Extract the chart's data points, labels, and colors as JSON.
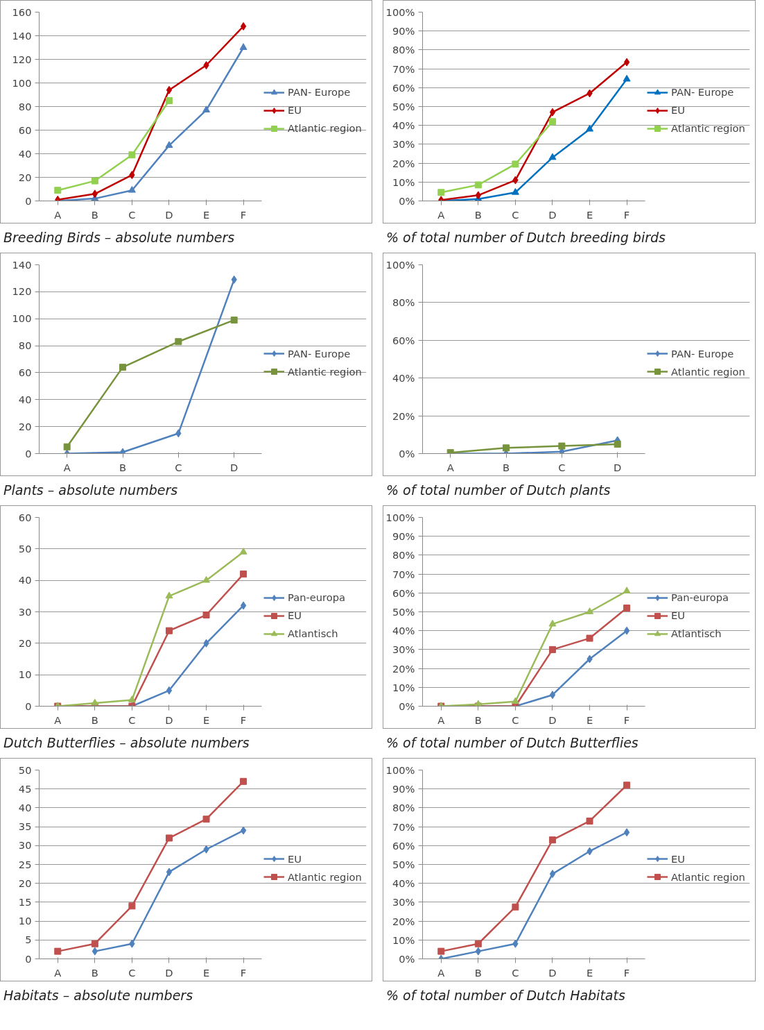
{
  "chart_data": [
    {
      "type": "line",
      "title": "Breeding Birds – absolute numbers",
      "categories": [
        "A",
        "B",
        "C",
        "D",
        "E",
        "F"
      ],
      "ylim": [
        0,
        160
      ],
      "yticks": [
        0,
        20,
        40,
        60,
        80,
        100,
        120,
        140,
        160
      ],
      "grid": "y",
      "legend": "right",
      "series": [
        {
          "name": "PAN- Europe",
          "color": "#4f81bd",
          "marker": "triangle",
          "values": [
            0,
            2,
            9,
            47,
            77,
            130
          ]
        },
        {
          "name": "EU",
          "color": "#c00000",
          "marker": "diamond",
          "values": [
            1,
            6,
            22,
            94,
            115,
            148
          ]
        },
        {
          "name": "Atlantic region",
          "color": "#92d050",
          "marker": "square",
          "values": [
            9,
            17,
            39,
            85,
            null,
            null
          ]
        }
      ]
    },
    {
      "type": "line",
      "title": "% of total number of Dutch breeding birds",
      "categories": [
        "A",
        "B",
        "C",
        "D",
        "E",
        "F"
      ],
      "ylim": [
        0,
        100
      ],
      "yticks": [
        {
          "value": 0,
          "label": "0%"
        },
        {
          "value": 10,
          "label": "10%"
        },
        {
          "value": 20,
          "label": "20%"
        },
        {
          "value": 30,
          "label": "30%"
        },
        {
          "value": 40,
          "label": "40%"
        },
        {
          "value": 50,
          "label": "50%"
        },
        {
          "value": 60,
          "label": "60%"
        },
        {
          "value": 70,
          "label": "70%"
        },
        {
          "value": 80,
          "label": "80%"
        },
        {
          "value": 90,
          "label": "90%"
        },
        {
          "value": 100,
          "label": "100%"
        }
      ],
      "grid": "y",
      "legend": "right",
      "series": [
        {
          "name": "PAN- Europe",
          "color": "#0070c0",
          "marker": "triangle",
          "values": [
            0,
            1,
            4.5,
            23,
            38,
            64.5
          ]
        },
        {
          "name": "EU",
          "color": "#c00000",
          "marker": "diamond",
          "values": [
            0.5,
            3,
            11,
            47,
            57,
            73.5
          ]
        },
        {
          "name": "Atlantic region",
          "color": "#92d050",
          "marker": "square",
          "values": [
            4.5,
            8.5,
            19.5,
            42,
            null,
            null
          ]
        }
      ]
    },
    {
      "type": "line",
      "title": "Plants – absolute numbers",
      "categories": [
        "A",
        "B",
        "C",
        "D"
      ],
      "ylim": [
        0,
        140
      ],
      "yticks": [
        0,
        20,
        40,
        60,
        80,
        100,
        120,
        140
      ],
      "grid": "y",
      "legend": "right",
      "series": [
        {
          "name": "PAN- Europe",
          "color": "#4f81bd",
          "marker": "diamond",
          "values": [
            0,
            1,
            15,
            129
          ]
        },
        {
          "name": "Atlantic region",
          "color": "#77933c",
          "marker": "square",
          "values": [
            5,
            64,
            83,
            99
          ]
        }
      ]
    },
    {
      "type": "line",
      "title": "% of total number of Dutch plants",
      "categories": [
        "A",
        "B",
        "C",
        "D"
      ],
      "ylim": [
        0,
        100
      ],
      "yticks": [
        {
          "value": 0,
          "label": "0%"
        },
        {
          "value": 20,
          "label": "20%"
        },
        {
          "value": 40,
          "label": "40%"
        },
        {
          "value": 60,
          "label": "60%"
        },
        {
          "value": 80,
          "label": "80%"
        },
        {
          "value": 100,
          "label": "100%"
        }
      ],
      "grid": "y",
      "legend": "right",
      "series": [
        {
          "name": "PAN- Europe",
          "color": "#4f81bd",
          "marker": "diamond",
          "values": [
            0,
            0,
            1,
            7
          ]
        },
        {
          "name": "Atlantic region",
          "color": "#77933c",
          "marker": "square",
          "values": [
            0.5,
            3,
            4,
            5
          ]
        }
      ]
    },
    {
      "type": "line",
      "title": "Dutch Butterflies – absolute numbers",
      "categories": [
        "A",
        "B",
        "C",
        "D",
        "E",
        "F"
      ],
      "ylim": [
        0,
        60
      ],
      "yticks": [
        0,
        10,
        20,
        30,
        40,
        50,
        60
      ],
      "grid": "y",
      "legend": "right",
      "series": [
        {
          "name": "Pan-europa",
          "color": "#4f81bd",
          "marker": "diamond",
          "values": [
            0,
            0,
            0,
            5,
            20,
            32
          ]
        },
        {
          "name": "EU",
          "color": "#c0504d",
          "marker": "square",
          "values": [
            0,
            0,
            0,
            24,
            29,
            42
          ]
        },
        {
          "name": "Atlantisch",
          "color": "#9bbb59",
          "marker": "triangle",
          "values": [
            0,
            1,
            2,
            35,
            40,
            49
          ]
        }
      ]
    },
    {
      "type": "line",
      "title": "% of total number of Dutch Butterflies",
      "categories": [
        "A",
        "B",
        "C",
        "D",
        "E",
        "F"
      ],
      "ylim": [
        0,
        100
      ],
      "yticks": [
        {
          "value": 0,
          "label": "0%"
        },
        {
          "value": 10,
          "label": "10%"
        },
        {
          "value": 20,
          "label": "20%"
        },
        {
          "value": 30,
          "label": "30%"
        },
        {
          "value": 40,
          "label": "40%"
        },
        {
          "value": 50,
          "label": "50%"
        },
        {
          "value": 60,
          "label": "60%"
        },
        {
          "value": 70,
          "label": "70%"
        },
        {
          "value": 80,
          "label": "80%"
        },
        {
          "value": 90,
          "label": "90%"
        },
        {
          "value": 100,
          "label": "100%"
        }
      ],
      "grid": "y",
      "legend": "right",
      "series": [
        {
          "name": "Pan-europa",
          "color": "#4f81bd",
          "marker": "diamond",
          "values": [
            0,
            0,
            0,
            6,
            25,
            40
          ]
        },
        {
          "name": "EU",
          "color": "#c0504d",
          "marker": "square",
          "values": [
            0,
            0,
            0,
            30,
            36,
            52
          ]
        },
        {
          "name": "Atlantisch",
          "color": "#9bbb59",
          "marker": "triangle",
          "values": [
            0,
            1,
            2.5,
            43.5,
            50,
            61
          ]
        }
      ]
    },
    {
      "type": "line",
      "title": "Habitats – absolute numbers",
      "categories": [
        "A",
        "B",
        "C",
        "D",
        "E",
        "F"
      ],
      "ylim": [
        0,
        50
      ],
      "yticks": [
        0,
        5,
        10,
        15,
        20,
        25,
        30,
        35,
        40,
        45,
        50
      ],
      "grid": "y",
      "legend": "right",
      "series": [
        {
          "name": "EU",
          "color": "#4f81bd",
          "marker": "diamond",
          "values": [
            null,
            2,
            4,
            23,
            29,
            34
          ]
        },
        {
          "name": "Atlantic region",
          "color": "#c0504d",
          "marker": "square",
          "values": [
            2,
            4,
            14,
            32,
            37,
            47
          ]
        }
      ]
    },
    {
      "type": "line",
      "title": "% of total number of Dutch Habitats",
      "categories": [
        "A",
        "B",
        "C",
        "D",
        "E",
        "F"
      ],
      "ylim": [
        0,
        100
      ],
      "yticks": [
        {
          "value": 0,
          "label": "0%"
        },
        {
          "value": 10,
          "label": "10%"
        },
        {
          "value": 20,
          "label": "20%"
        },
        {
          "value": 30,
          "label": "30%"
        },
        {
          "value": 40,
          "label": "40%"
        },
        {
          "value": 50,
          "label": "50%"
        },
        {
          "value": 60,
          "label": "60%"
        },
        {
          "value": 70,
          "label": "70%"
        },
        {
          "value": 80,
          "label": "80%"
        },
        {
          "value": 90,
          "label": "90%"
        },
        {
          "value": 100,
          "label": "100%"
        }
      ],
      "grid": "y",
      "legend": "right",
      "series": [
        {
          "name": "EU",
          "color": "#4f81bd",
          "marker": "diamond",
          "values": [
            0,
            4,
            8,
            45,
            57,
            67
          ]
        },
        {
          "name": "Atlantic region",
          "color": "#c0504d",
          "marker": "square",
          "values": [
            4,
            8,
            27.5,
            63,
            73,
            92
          ]
        }
      ]
    }
  ]
}
